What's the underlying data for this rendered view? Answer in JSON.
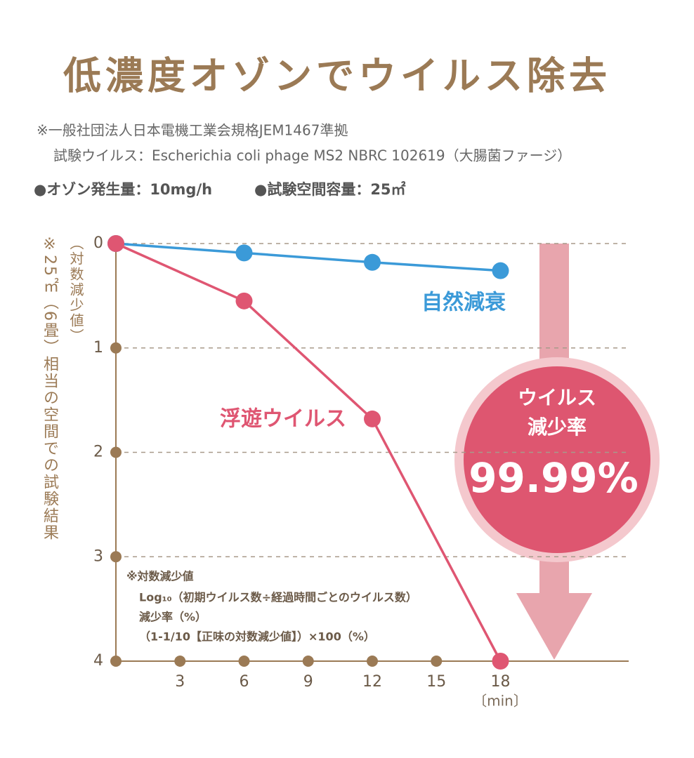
{
  "chart_data": {
    "type": "line",
    "title": "低濃度オゾンでウイルス除去",
    "notes": [
      "※一般社団法人日本電機工業会規格JEM1467準拠",
      "試験ウイルス：Escherichia coli phage MS2 NBRC 102619（大腸菌ファージ）"
    ],
    "conditions": [
      "●オゾン発生量：10mg/h",
      "●試験空間容量：25㎡"
    ],
    "y_label": "（対数減少値）",
    "side_note": "※25㎡（6畳）相当の空間での試験結果",
    "x_unit": "〔min〕",
    "xlim": [
      0,
      24
    ],
    "xticks": [
      3,
      6,
      9,
      12,
      15,
      18
    ],
    "ylim": [
      0,
      4
    ],
    "yticks": [
      0,
      1,
      2,
      3,
      4
    ],
    "y_inverted": true,
    "grid": true,
    "series": [
      {
        "name": "自然減衰",
        "color": "#3b9ad8",
        "x": [
          0,
          6,
          12,
          18
        ],
        "values": [
          0,
          0.09,
          0.18,
          0.26
        ]
      },
      {
        "name": "浮遊ウイルス",
        "color": "#df5672",
        "x": [
          0,
          6,
          12,
          18
        ],
        "values": [
          0,
          0.55,
          1.68,
          4
        ]
      }
    ],
    "formula": [
      "※対数減少値",
      "Log₁₀（初期ウイルス数÷経過時間ごとのウイルス数）",
      "減少率（%）",
      "（1-1/10【正味の対数減少値】）×100（%）"
    ],
    "badge": {
      "lines": [
        "ウイルス",
        "減少率"
      ],
      "value": "99.99%"
    }
  }
}
